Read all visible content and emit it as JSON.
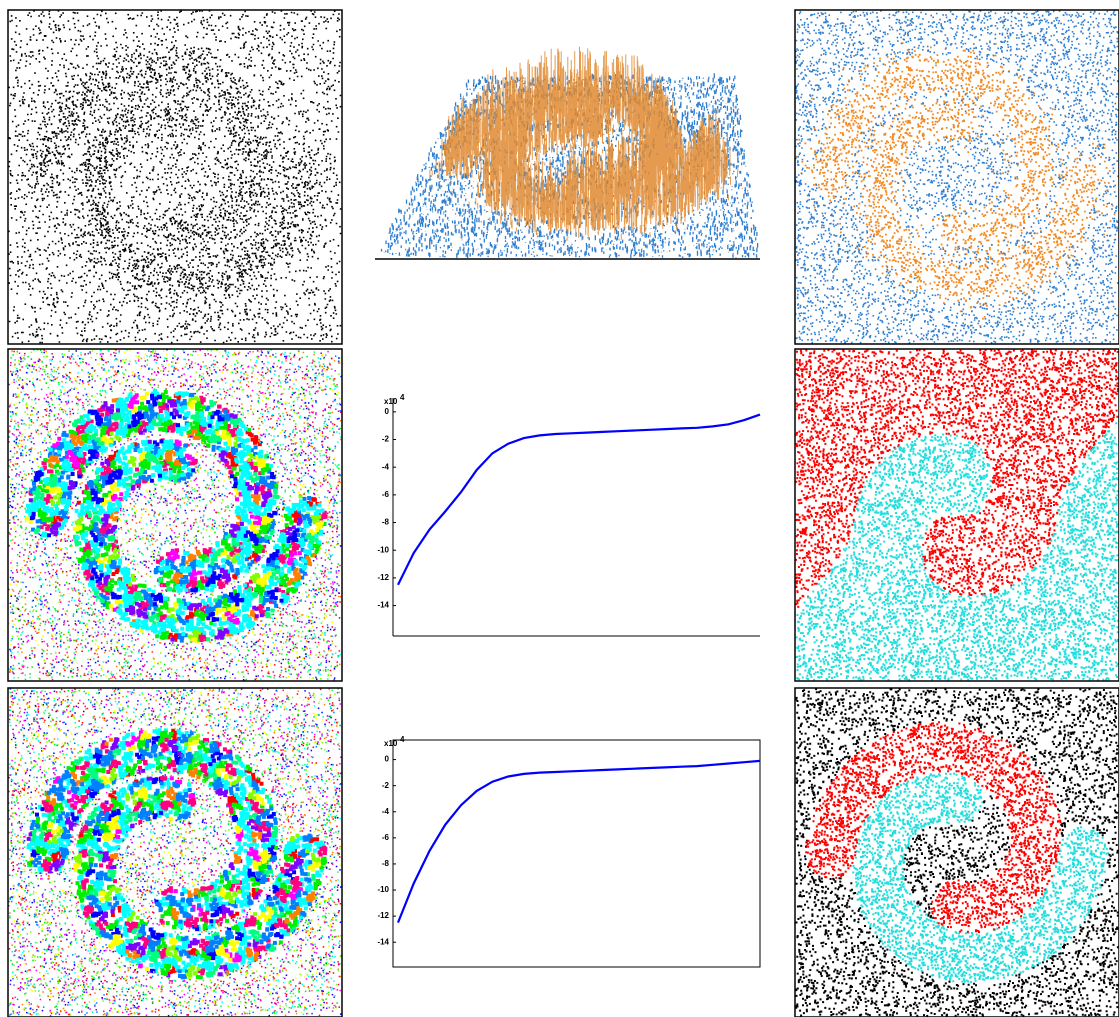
{
  "chart_data": [
    {
      "type": "line",
      "y_multiplier": "x10",
      "y_multiplier_exponent": "4",
      "ylim": [
        -16.2,
        1
      ],
      "yticks": [
        0,
        -2,
        -4,
        -6,
        -8,
        -10,
        -12,
        -14
      ],
      "color": "#0000ff",
      "frame": "axes",
      "values": [
        -12.5,
        -10.2,
        -8.5,
        -7.2,
        -5.8,
        -4.2,
        -3.0,
        -2.3,
        -1.9,
        -1.7,
        -1.6,
        -1.55,
        -1.5,
        -1.45,
        -1.4,
        -1.35,
        -1.3,
        -1.25,
        -1.2,
        -1.15,
        -1.05,
        -0.9,
        -0.6,
        -0.2
      ]
    },
    {
      "type": "line",
      "y_multiplier": "x10",
      "y_multiplier_exponent": "4",
      "ylim": [
        -15.9,
        1.5
      ],
      "yticks": [
        0,
        -2,
        -4,
        -6,
        -8,
        -10,
        -12,
        -14
      ],
      "color": "#0000ff",
      "frame": "box",
      "values": [
        -12.5,
        -9.5,
        -7.0,
        -5.0,
        -3.5,
        -2.4,
        -1.7,
        -1.3,
        -1.1,
        -1.0,
        -0.95,
        -0.9,
        -0.85,
        -0.8,
        -0.75,
        -0.7,
        -0.65,
        -0.6,
        -0.55,
        -0.5,
        -0.4,
        -0.3,
        -0.2,
        -0.1
      ]
    }
  ]
}
